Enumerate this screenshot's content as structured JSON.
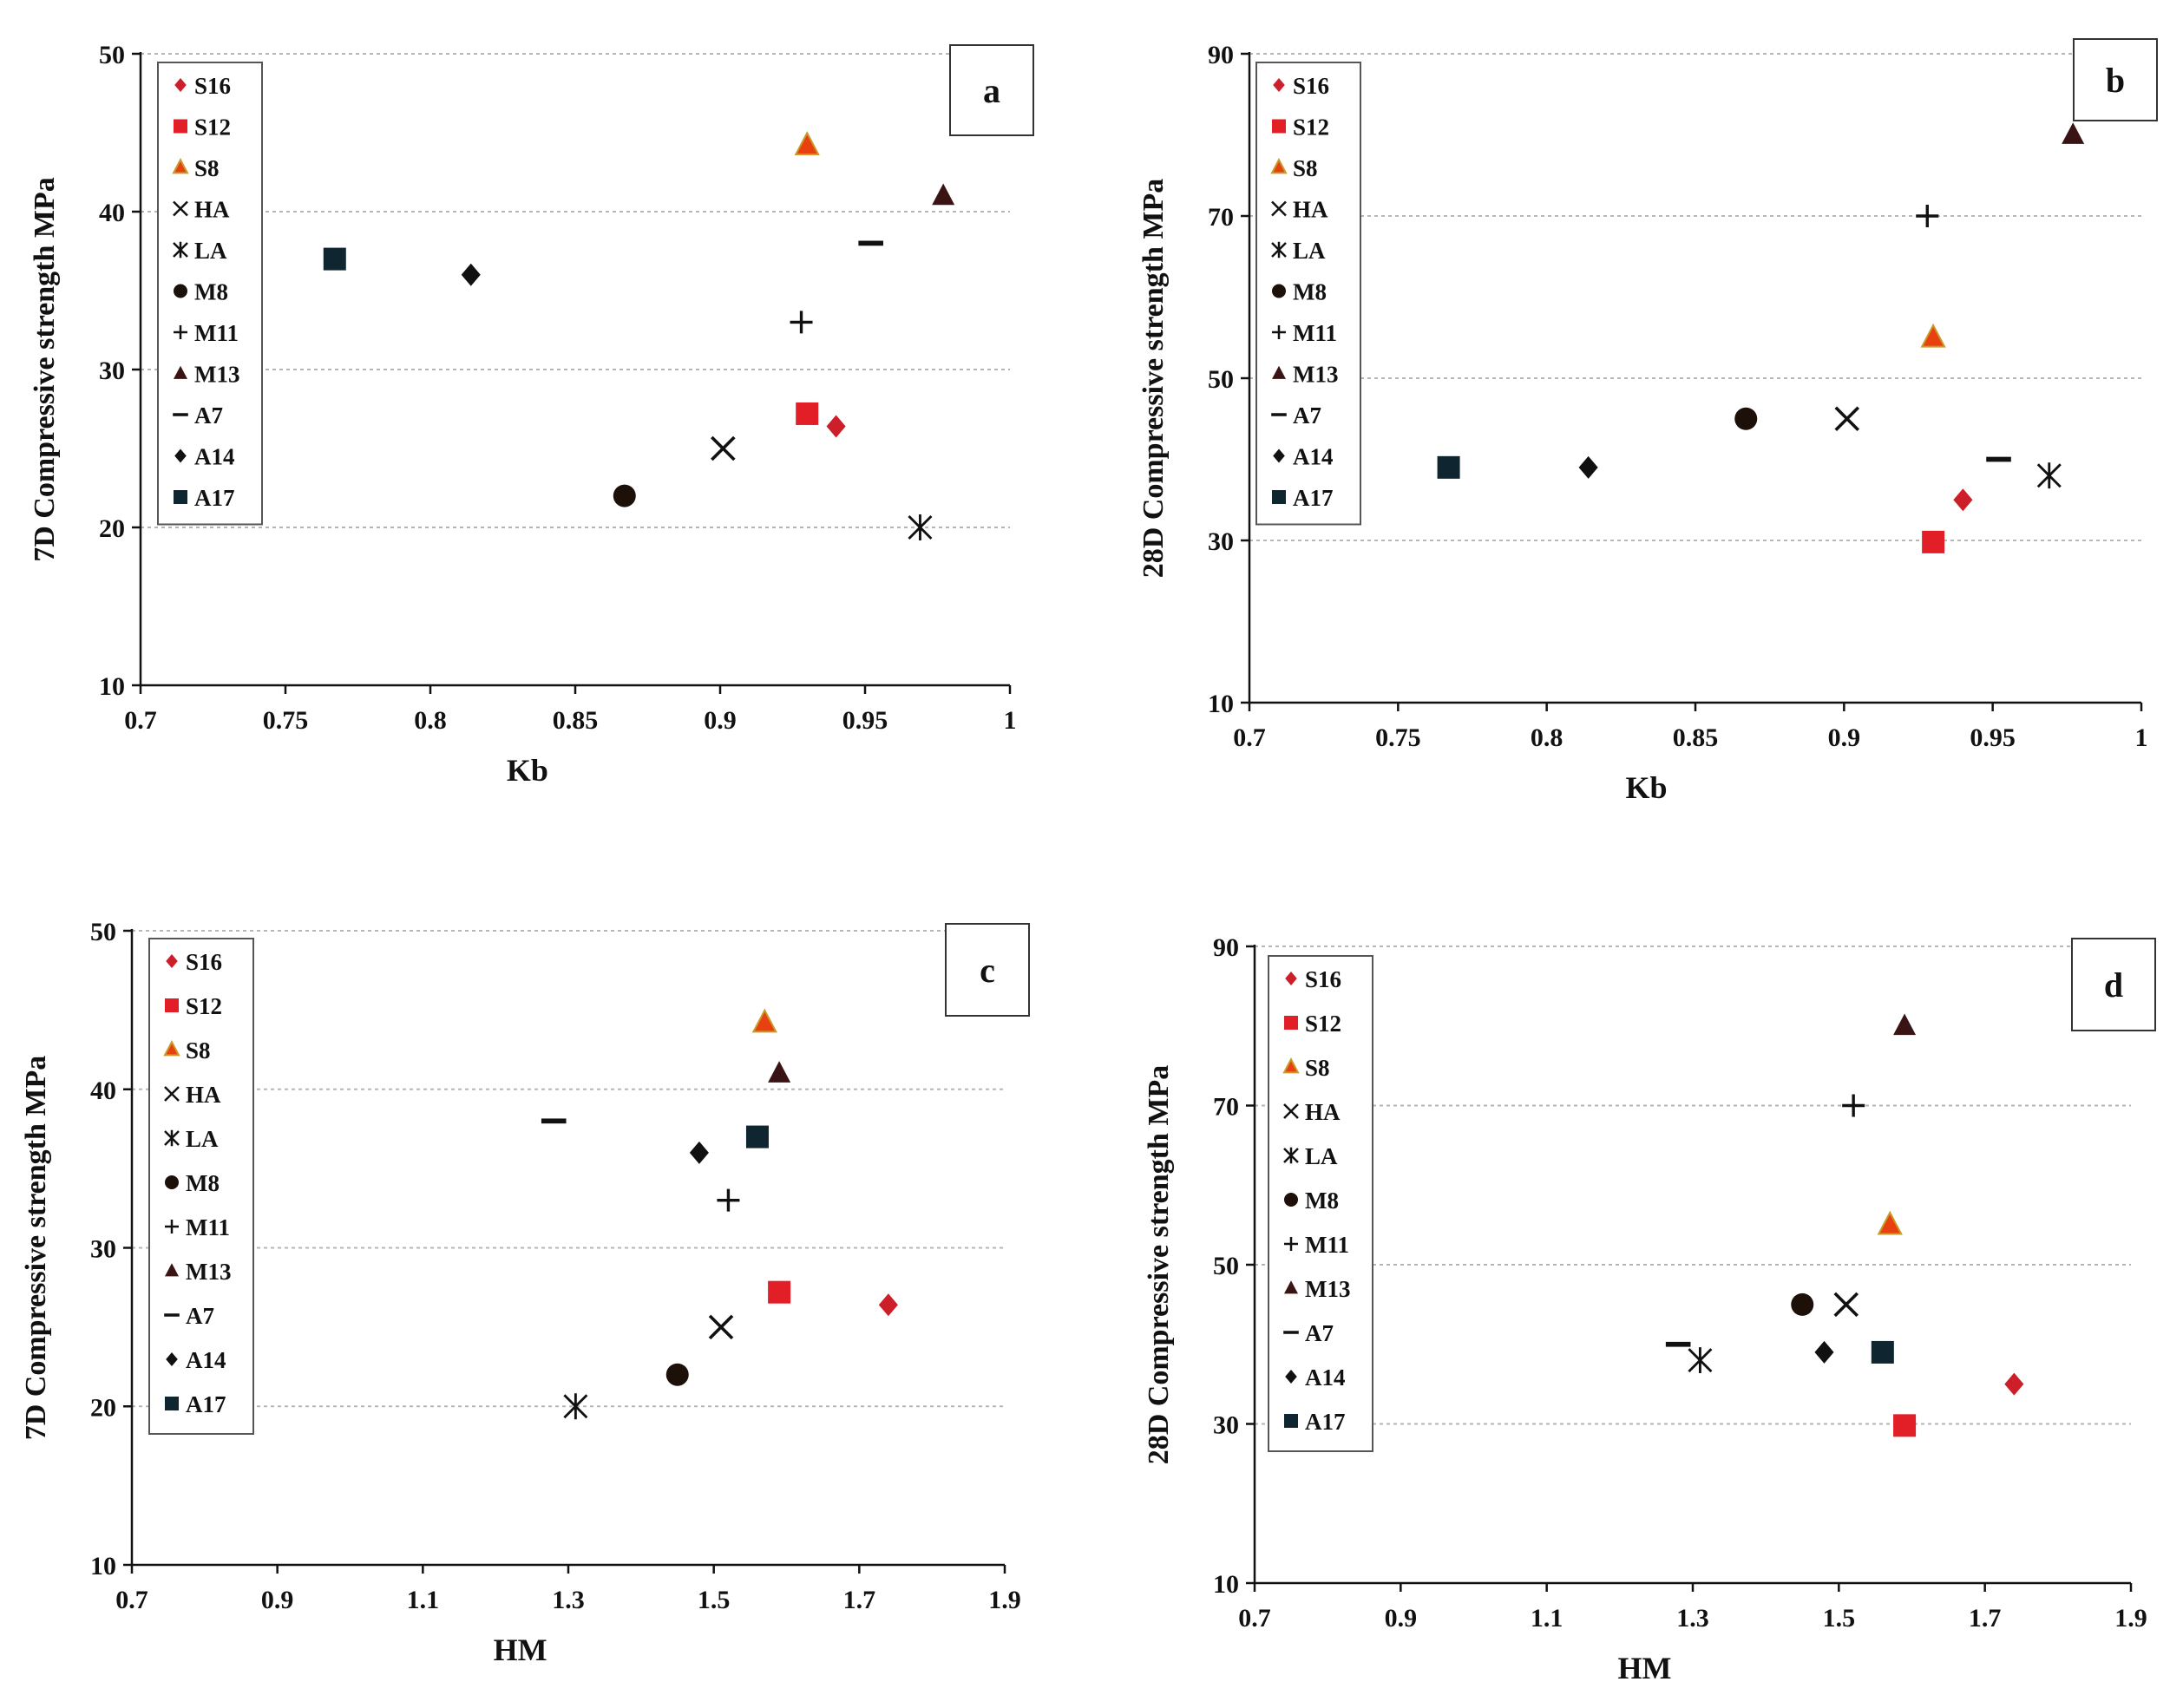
{
  "chart_data": [
    {
      "panel": "a",
      "type": "scatter",
      "xlabel": "Kb",
      "ylabel": "7D Compressive strength MPa",
      "xlim": [
        0.7,
        1
      ],
      "ylim": [
        10,
        50
      ],
      "xticks": [
        0.7,
        0.75,
        0.8,
        0.85,
        0.9,
        0.95,
        1
      ],
      "xtick_labels": [
        "0.7",
        "0.75",
        "0.8",
        "0.85",
        "0.9",
        "0.95",
        "1"
      ],
      "yticks": [
        10,
        20,
        30,
        40,
        50
      ],
      "ytick_labels": [
        "10",
        "20",
        "30",
        "40",
        "50"
      ],
      "grid": "horizontal dashed",
      "legend": "top-left",
      "series": [
        {
          "name": "S16",
          "x": 0.94,
          "y": 26.4
        },
        {
          "name": "S12",
          "x": 0.93,
          "y": 27.2
        },
        {
          "name": "S8",
          "x": 0.93,
          "y": 44.2
        },
        {
          "name": "HA",
          "x": 0.901,
          "y": 25
        },
        {
          "name": "LA",
          "x": 0.969,
          "y": 20
        },
        {
          "name": "M8",
          "x": 0.867,
          "y": 22
        },
        {
          "name": "M11",
          "x": 0.928,
          "y": 33
        },
        {
          "name": "M13",
          "x": 0.977,
          "y": 41
        },
        {
          "name": "A7",
          "x": 0.952,
          "y": 38
        },
        {
          "name": "A14",
          "x": 0.814,
          "y": 36
        },
        {
          "name": "A17",
          "x": 0.767,
          "y": 37
        }
      ]
    },
    {
      "panel": "b",
      "type": "scatter",
      "xlabel": "Kb",
      "ylabel": "28D Compressive strength MPa",
      "xlim": [
        0.7,
        1
      ],
      "ylim": [
        10,
        90
      ],
      "xticks": [
        0.7,
        0.75,
        0.8,
        0.85,
        0.9,
        0.95,
        1
      ],
      "xtick_labels": [
        "0.7",
        "0.75",
        "0.8",
        "0.85",
        "0.9",
        "0.95",
        "1"
      ],
      "yticks": [
        10,
        30,
        50,
        70,
        90
      ],
      "ytick_labels": [
        "10",
        "30",
        "50",
        "70",
        "90"
      ],
      "grid": "horizontal dashed",
      "legend": "top-left",
      "series": [
        {
          "name": "S16",
          "x": 0.94,
          "y": 35
        },
        {
          "name": "S12",
          "x": 0.93,
          "y": 29.8
        },
        {
          "name": "S8",
          "x": 0.93,
          "y": 55
        },
        {
          "name": "HA",
          "x": 0.901,
          "y": 45
        },
        {
          "name": "LA",
          "x": 0.969,
          "y": 38
        },
        {
          "name": "M8",
          "x": 0.867,
          "y": 45
        },
        {
          "name": "M11",
          "x": 0.928,
          "y": 70
        },
        {
          "name": "M13",
          "x": 0.977,
          "y": 80
        },
        {
          "name": "A7",
          "x": 0.952,
          "y": 40
        },
        {
          "name": "A14",
          "x": 0.814,
          "y": 39
        },
        {
          "name": "A17",
          "x": 0.767,
          "y": 39
        }
      ]
    },
    {
      "panel": "c",
      "type": "scatter",
      "xlabel": "HM",
      "ylabel": "7D Compressive strength MPa",
      "xlim": [
        0.7,
        1.9
      ],
      "ylim": [
        10,
        50
      ],
      "xticks": [
        0.7,
        0.9,
        1.1,
        1.3,
        1.5,
        1.7,
        1.9
      ],
      "xtick_labels": [
        "0.7",
        "0.9",
        "1.1",
        "1.3",
        "1.5",
        "1.7",
        "1.9"
      ],
      "yticks": [
        10,
        20,
        30,
        40,
        50
      ],
      "ytick_labels": [
        "10",
        "20",
        "30",
        "40",
        "50"
      ],
      "grid": "horizontal dashed",
      "legend": "top-left",
      "series": [
        {
          "name": "S16",
          "x": 1.74,
          "y": 26.4
        },
        {
          "name": "S12",
          "x": 1.59,
          "y": 27.2
        },
        {
          "name": "S8",
          "x": 1.57,
          "y": 44.2
        },
        {
          "name": "HA",
          "x": 1.51,
          "y": 25
        },
        {
          "name": "LA",
          "x": 1.31,
          "y": 20
        },
        {
          "name": "M8",
          "x": 1.45,
          "y": 22
        },
        {
          "name": "M11",
          "x": 1.52,
          "y": 33
        },
        {
          "name": "M13",
          "x": 1.59,
          "y": 41
        },
        {
          "name": "A7",
          "x": 1.28,
          "y": 38
        },
        {
          "name": "A14",
          "x": 1.48,
          "y": 36
        },
        {
          "name": "A17",
          "x": 1.56,
          "y": 37
        }
      ]
    },
    {
      "panel": "d",
      "type": "scatter",
      "xlabel": "HM",
      "ylabel": "28D Compressive strength MPa",
      "xlim": [
        0.7,
        1.9
      ],
      "ylim": [
        10,
        90
      ],
      "xticks": [
        0.7,
        0.9,
        1.1,
        1.3,
        1.5,
        1.7,
        1.9
      ],
      "xtick_labels": [
        "0.7",
        "0.9",
        "1.1",
        "1.3",
        "1.5",
        "1.7",
        "1.9"
      ],
      "yticks": [
        10,
        30,
        50,
        70,
        90
      ],
      "ytick_labels": [
        "10",
        "30",
        "50",
        "70",
        "90"
      ],
      "grid": "horizontal dashed",
      "legend": "top-left",
      "series": [
        {
          "name": "S16",
          "x": 1.74,
          "y": 35
        },
        {
          "name": "S12",
          "x": 1.59,
          "y": 29.8
        },
        {
          "name": "S8",
          "x": 1.57,
          "y": 55
        },
        {
          "name": "HA",
          "x": 1.51,
          "y": 45
        },
        {
          "name": "LA",
          "x": 1.31,
          "y": 38
        },
        {
          "name": "M8",
          "x": 1.45,
          "y": 45
        },
        {
          "name": "M11",
          "x": 1.52,
          "y": 70
        },
        {
          "name": "M13",
          "x": 1.59,
          "y": 80
        },
        {
          "name": "A7",
          "x": 1.28,
          "y": 40
        },
        {
          "name": "A14",
          "x": 1.48,
          "y": 39
        },
        {
          "name": "A17",
          "x": 1.56,
          "y": 39
        }
      ]
    }
  ],
  "legend_items": [
    {
      "name": "S16",
      "icon": "diamond-marker",
      "color": "#cc1f2a"
    },
    {
      "name": "S12",
      "icon": "square-marker",
      "color": "#e21f26"
    },
    {
      "name": "S8",
      "icon": "triangle-marker",
      "color": "#e8400f",
      "stroke": "#c89b2a"
    },
    {
      "name": "HA",
      "icon": "x-marker",
      "color": "#111111"
    },
    {
      "name": "LA",
      "icon": "asterisk-marker",
      "color": "#111111"
    },
    {
      "name": "M8",
      "icon": "circle-marker",
      "color": "#1c1008"
    },
    {
      "name": "M11",
      "icon": "plus-marker",
      "color": "#111111"
    },
    {
      "name": "M13",
      "icon": "triangle-marker",
      "color": "#3a1414"
    },
    {
      "name": "A7",
      "icon": "dash-marker",
      "color": "#111111"
    },
    {
      "name": "A14",
      "icon": "diamond-marker",
      "color": "#111111"
    },
    {
      "name": "A17",
      "icon": "square-marker",
      "color": "#0f2530"
    }
  ],
  "colors": {
    "grid": "#b5b5b5",
    "axis": "#111111",
    "background": "#ffffff"
  }
}
